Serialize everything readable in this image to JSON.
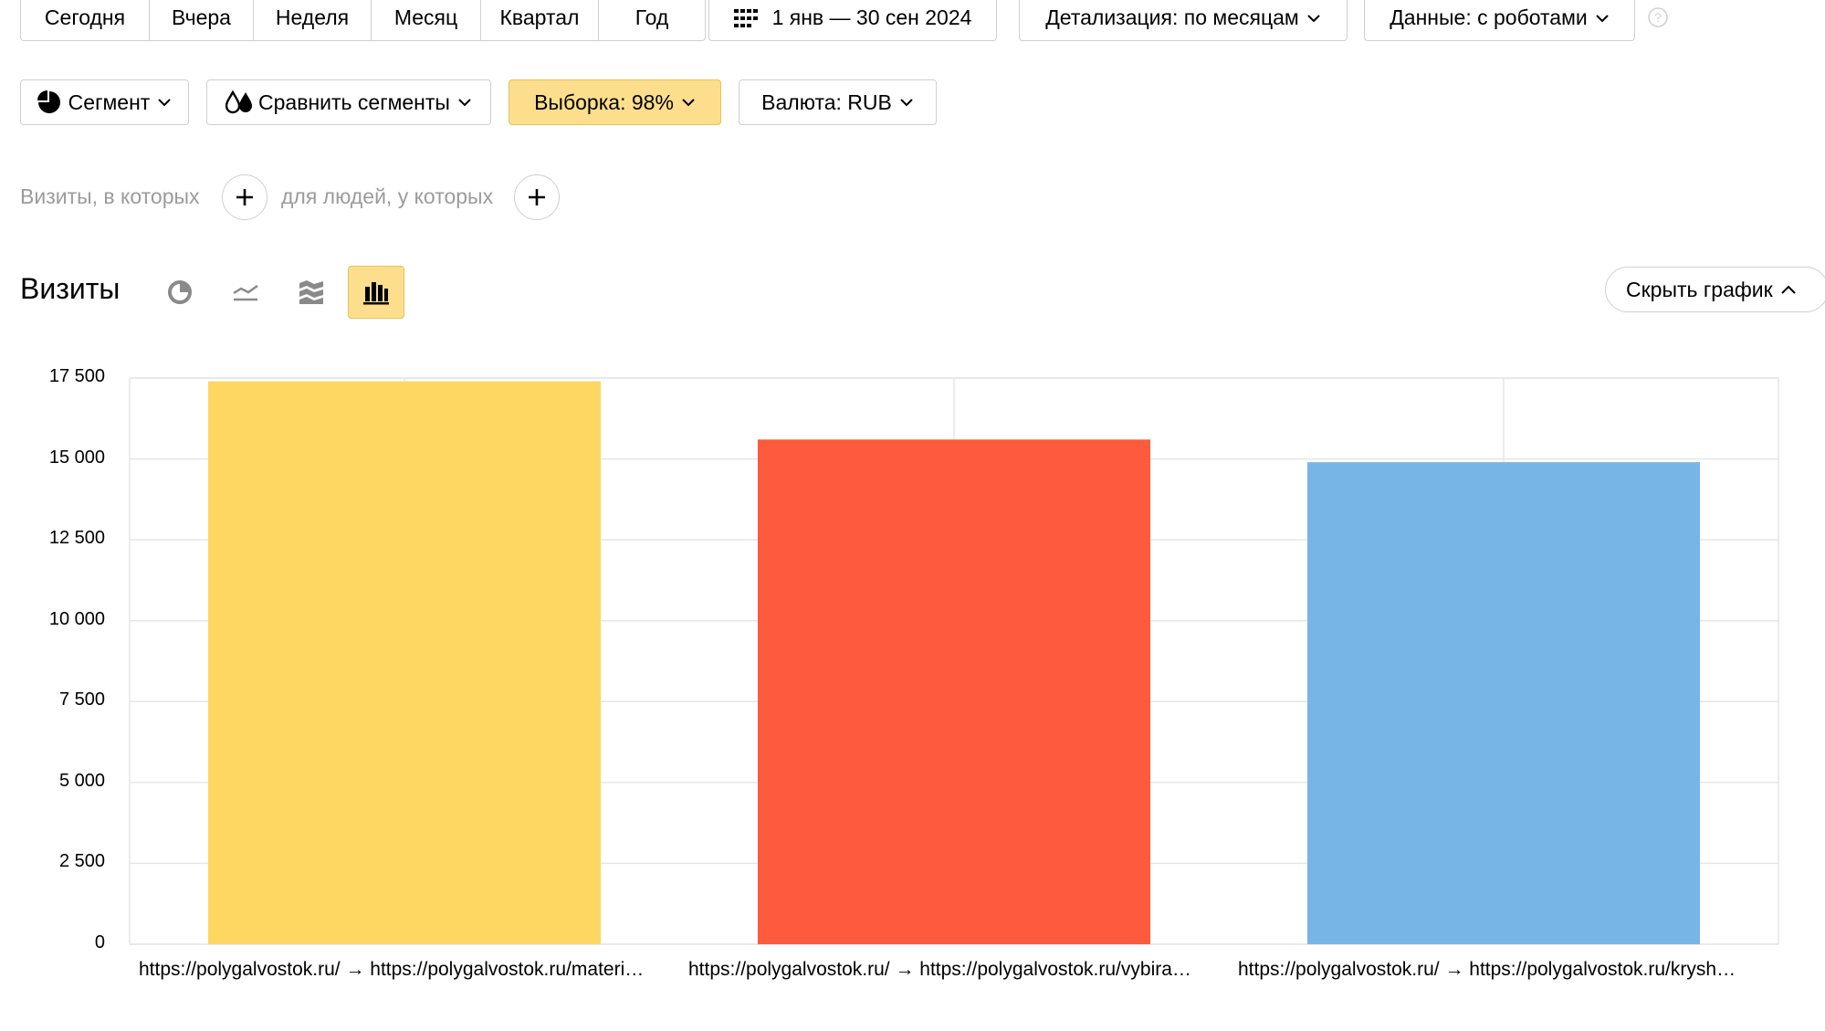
{
  "toolbar": {
    "periods": [
      "Сегодня",
      "Вчера",
      "Неделя",
      "Месяц",
      "Квартал",
      "Год"
    ],
    "date_range": "1 янв — 30 сен 2024",
    "detail": "Детализация: по месяцам",
    "data_mode": "Данные: с роботами"
  },
  "filters": {
    "segment": "Сегмент",
    "compare": "Сравнить сегменты",
    "sample": "Выборка: 98%",
    "currency": "Валюта: RUB",
    "visits_label": "Визиты, в которых",
    "people_label": "для людей, у которых"
  },
  "chart_header": {
    "title": "Визиты",
    "hide_button": "Скрыть график"
  },
  "colors": {
    "accent": "#fdde8c",
    "bar1": "#fdd762",
    "bar2": "#fd5a3e",
    "bar3": "#77b5e6"
  },
  "chart_data": {
    "type": "bar",
    "categories": [
      "https://polygalvostok.ru/ → https://polygalvostok.ru/materi…",
      "https://polygalvostok.ru/ → https://polygalvostok.ru/vybira…",
      "https://polygalvostok.ru/ → https://polygalvostok.ru/krysh…"
    ],
    "values": [
      17400,
      15600,
      14900
    ],
    "ylim": [
      0,
      17500
    ],
    "yticks": [
      0,
      2500,
      5000,
      7500,
      10000,
      12500,
      15000,
      17500
    ],
    "ytick_labels": [
      "0",
      "2 500",
      "5 000",
      "7 500",
      "10 000",
      "12 500",
      "15 000",
      "17 500"
    ],
    "grid": true
  }
}
